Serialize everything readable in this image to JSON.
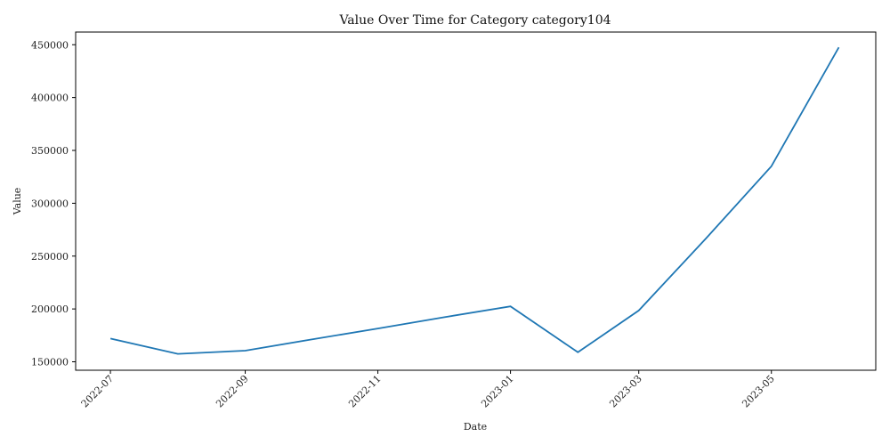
{
  "chart_data": {
    "type": "line",
    "title": "Value Over Time for Category category104",
    "xlabel": "Date",
    "ylabel": "Value",
    "x": [
      "2022-07-01",
      "2022-08-01",
      "2022-09-01",
      "2022-10-01",
      "2022-11-01",
      "2022-12-01",
      "2023-01-01",
      "2023-02-01",
      "2023-03-01",
      "2023-04-01",
      "2023-05-01",
      "2023-06-01"
    ],
    "series": [
      {
        "values": [
          172000,
          157500,
          160500,
          171000,
          181500,
          192000,
          202500,
          159000,
          198500,
          267000,
          335000,
          447500
        ]
      }
    ],
    "x_ticks": [
      "2022-07",
      "2022-09",
      "2022-11",
      "2023-01",
      "2023-03",
      "2023-05"
    ],
    "y_ticks": [
      150000,
      200000,
      250000,
      300000,
      350000,
      400000,
      450000
    ],
    "xlim": [
      "2022-06-15",
      "2023-06-18"
    ],
    "ylim": [
      142000,
      462000
    ],
    "grid": false,
    "colors": {
      "line": "#1f77b4",
      "axis": "#000000"
    }
  }
}
